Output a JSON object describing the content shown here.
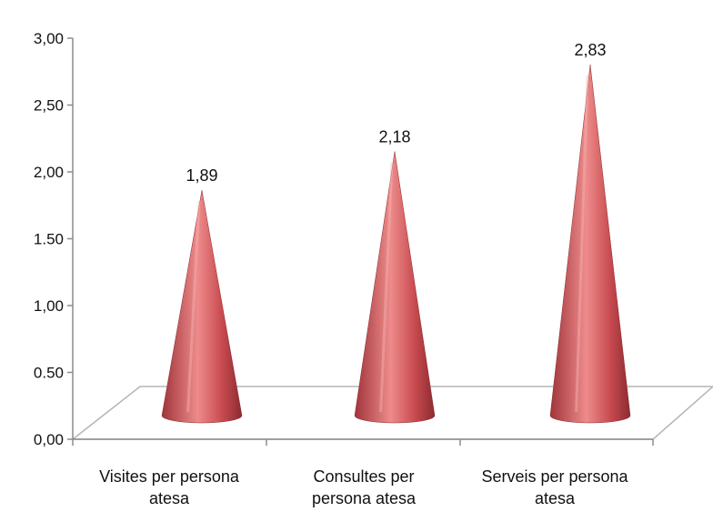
{
  "chart_data": {
    "type": "bar",
    "shape": "cone-3d",
    "categories": [
      [
        "Visites per persona",
        "atesa"
      ],
      [
        "Consultes per",
        "persona atesa"
      ],
      [
        "Serveis per persona",
        "atesa"
      ]
    ],
    "series": [
      {
        "values": [
          1.89,
          2.18,
          2.83
        ]
      }
    ],
    "data_labels": [
      "1,89",
      "2,18",
      "2,83"
    ],
    "y_ticks": [
      "0,00",
      "0.50",
      "1,00",
      "1.50",
      "2,00",
      "2,50",
      "3,00"
    ],
    "y_tick_values": [
      0,
      0.5,
      1,
      1.5,
      2,
      2.5,
      3
    ],
    "ylim": [
      0,
      3
    ],
    "title": "",
    "xlabel": "",
    "ylabel": "",
    "grid": false,
    "legend": "none",
    "colors": {
      "cone": "#c0444a",
      "cone_highlight": "#ee8b8b",
      "cone_shadow": "#8c2b30",
      "axis": "#8c8c8c",
      "floor": "#b5b5b5"
    }
  }
}
